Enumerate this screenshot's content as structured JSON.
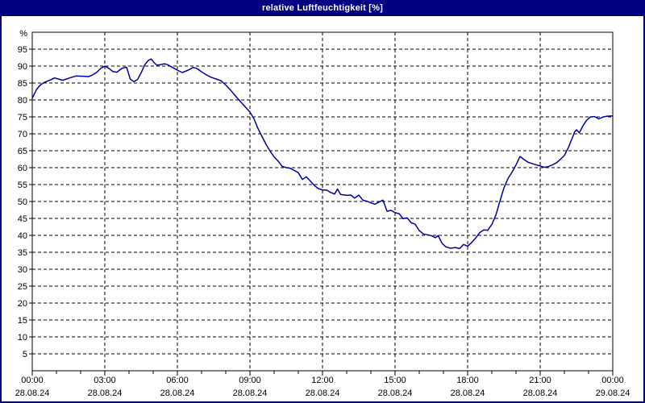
{
  "window": {
    "title": "relative Luftfeuchtigkeit [%]",
    "frame_color": "#000080",
    "titlebar_color": "#000080",
    "title_text_color": "#ffffff"
  },
  "chart_data": {
    "type": "line",
    "title": "relative Luftfeuchtigkeit [%]",
    "grid": true,
    "legend": "none",
    "y_axis": {
      "unit": "%",
      "range": [
        0,
        100
      ],
      "gridline_values": [
        5,
        10,
        15,
        20,
        25,
        30,
        35,
        40,
        45,
        50,
        55,
        60,
        65,
        70,
        75,
        80,
        85,
        90,
        95
      ]
    },
    "x_axis": {
      "start_hours": 0,
      "end_hours": 24,
      "minor_tick_hours": 1,
      "ticks": [
        {
          "hours": 0,
          "time": "00:00",
          "date": "28.08.24"
        },
        {
          "hours": 3,
          "time": "03:00",
          "date": "28.08.24"
        },
        {
          "hours": 6,
          "time": "06:00",
          "date": "28.08.24"
        },
        {
          "hours": 9,
          "time": "09:00",
          "date": "28.08.24"
        },
        {
          "hours": 12,
          "time": "12:00",
          "date": "28.08.24"
        },
        {
          "hours": 15,
          "time": "15:00",
          "date": "28.08.24"
        },
        {
          "hours": 18,
          "time": "18:00",
          "date": "28.08.24"
        },
        {
          "hours": 21,
          "time": "21:00",
          "date": "28.08.24"
        },
        {
          "hours": 24,
          "time": "00:00",
          "date": "29.08.24"
        }
      ]
    },
    "series": [
      {
        "name": "relative Luftfeuchtigkeit",
        "color": "#0000a0",
        "points": [
          [
            0.0,
            80.5
          ],
          [
            0.17,
            83.0
          ],
          [
            0.33,
            84.4
          ],
          [
            0.5,
            85.2
          ],
          [
            0.75,
            85.9
          ],
          [
            0.92,
            86.5
          ],
          [
            1.08,
            86.2
          ],
          [
            1.25,
            85.8
          ],
          [
            1.42,
            86.2
          ],
          [
            1.58,
            86.6
          ],
          [
            1.83,
            87.1
          ],
          [
            2.08,
            87.0
          ],
          [
            2.33,
            86.9
          ],
          [
            2.5,
            87.4
          ],
          [
            2.67,
            88.2
          ],
          [
            2.83,
            89.3
          ],
          [
            3.0,
            90.0
          ],
          [
            3.17,
            89.3
          ],
          [
            3.33,
            88.4
          ],
          [
            3.5,
            88.2
          ],
          [
            3.7,
            89.3
          ],
          [
            3.9,
            89.7
          ],
          [
            4.05,
            86.2
          ],
          [
            4.2,
            85.4
          ],
          [
            4.35,
            86.0
          ],
          [
            4.5,
            88.0
          ],
          [
            4.65,
            90.4
          ],
          [
            4.8,
            91.7
          ],
          [
            4.92,
            92.1
          ],
          [
            5.05,
            90.9
          ],
          [
            5.15,
            90.3
          ],
          [
            5.3,
            90.4
          ],
          [
            5.45,
            90.7
          ],
          [
            5.6,
            90.4
          ],
          [
            5.8,
            89.6
          ],
          [
            6.0,
            88.8
          ],
          [
            6.2,
            88.1
          ],
          [
            6.45,
            88.8
          ],
          [
            6.65,
            89.6
          ],
          [
            6.8,
            89.3
          ],
          [
            7.0,
            88.3
          ],
          [
            7.2,
            87.4
          ],
          [
            7.4,
            86.7
          ],
          [
            7.6,
            86.2
          ],
          [
            7.8,
            85.7
          ],
          [
            8.0,
            84.4
          ],
          [
            8.2,
            82.9
          ],
          [
            8.4,
            81.2
          ],
          [
            8.6,
            79.6
          ],
          [
            8.8,
            78.0
          ],
          [
            9.0,
            76.4
          ],
          [
            9.17,
            74.4
          ],
          [
            9.33,
            71.6
          ],
          [
            9.5,
            69.2
          ],
          [
            9.67,
            66.8
          ],
          [
            9.83,
            64.9
          ],
          [
            10.0,
            63.2
          ],
          [
            10.17,
            61.9
          ],
          [
            10.33,
            60.4
          ],
          [
            10.5,
            60.0
          ],
          [
            10.67,
            59.8
          ],
          [
            10.83,
            59.2
          ],
          [
            11.0,
            58.5
          ],
          [
            11.17,
            56.5
          ],
          [
            11.33,
            57.3
          ],
          [
            11.5,
            56.0
          ],
          [
            11.67,
            54.7
          ],
          [
            11.83,
            53.8
          ],
          [
            12.0,
            53.4
          ],
          [
            12.17,
            53.4
          ],
          [
            12.33,
            52.7
          ],
          [
            12.5,
            52.2
          ],
          [
            12.62,
            53.7
          ],
          [
            12.75,
            52.1
          ],
          [
            13.0,
            51.8
          ],
          [
            13.17,
            51.9
          ],
          [
            13.33,
            51.0
          ],
          [
            13.5,
            51.9
          ],
          [
            13.67,
            50.4
          ],
          [
            13.83,
            50.1
          ],
          [
            14.0,
            49.6
          ],
          [
            14.17,
            49.2
          ],
          [
            14.33,
            49.8
          ],
          [
            14.5,
            50.4
          ],
          [
            14.67,
            47.1
          ],
          [
            14.83,
            47.4
          ],
          [
            15.0,
            46.7
          ],
          [
            15.17,
            46.4
          ],
          [
            15.33,
            44.9
          ],
          [
            15.5,
            45.2
          ],
          [
            15.67,
            43.7
          ],
          [
            15.83,
            43.3
          ],
          [
            16.0,
            41.4
          ],
          [
            16.17,
            40.4
          ],
          [
            16.33,
            40.2
          ],
          [
            16.5,
            39.9
          ],
          [
            16.67,
            39.3
          ],
          [
            16.78,
            39.9
          ],
          [
            16.95,
            37.6
          ],
          [
            17.1,
            36.6
          ],
          [
            17.3,
            36.2
          ],
          [
            17.5,
            36.4
          ],
          [
            17.67,
            36.1
          ],
          [
            17.83,
            37.3
          ],
          [
            18.0,
            36.8
          ],
          [
            18.17,
            37.9
          ],
          [
            18.33,
            39.2
          ],
          [
            18.5,
            40.8
          ],
          [
            18.67,
            41.6
          ],
          [
            18.83,
            41.5
          ],
          [
            19.0,
            43.2
          ],
          [
            19.17,
            46.0
          ],
          [
            19.33,
            50.0
          ],
          [
            19.5,
            54.0
          ],
          [
            19.67,
            56.8
          ],
          [
            19.83,
            58.6
          ],
          [
            20.0,
            60.8
          ],
          [
            20.17,
            63.3
          ],
          [
            20.33,
            62.4
          ],
          [
            20.5,
            61.6
          ],
          [
            20.75,
            61.0
          ],
          [
            21.0,
            60.5
          ],
          [
            21.17,
            60.1
          ],
          [
            21.33,
            60.3
          ],
          [
            21.5,
            60.8
          ],
          [
            21.67,
            61.4
          ],
          [
            21.83,
            62.4
          ],
          [
            22.0,
            63.6
          ],
          [
            22.17,
            66.0
          ],
          [
            22.33,
            68.8
          ],
          [
            22.42,
            70.5
          ],
          [
            22.5,
            71.2
          ],
          [
            22.62,
            70.3
          ],
          [
            22.77,
            72.4
          ],
          [
            22.92,
            74.0
          ],
          [
            23.08,
            75.0
          ],
          [
            23.25,
            75.1
          ],
          [
            23.42,
            74.4
          ],
          [
            23.58,
            74.9
          ],
          [
            23.75,
            75.2
          ],
          [
            24.0,
            75.3
          ]
        ]
      }
    ]
  }
}
